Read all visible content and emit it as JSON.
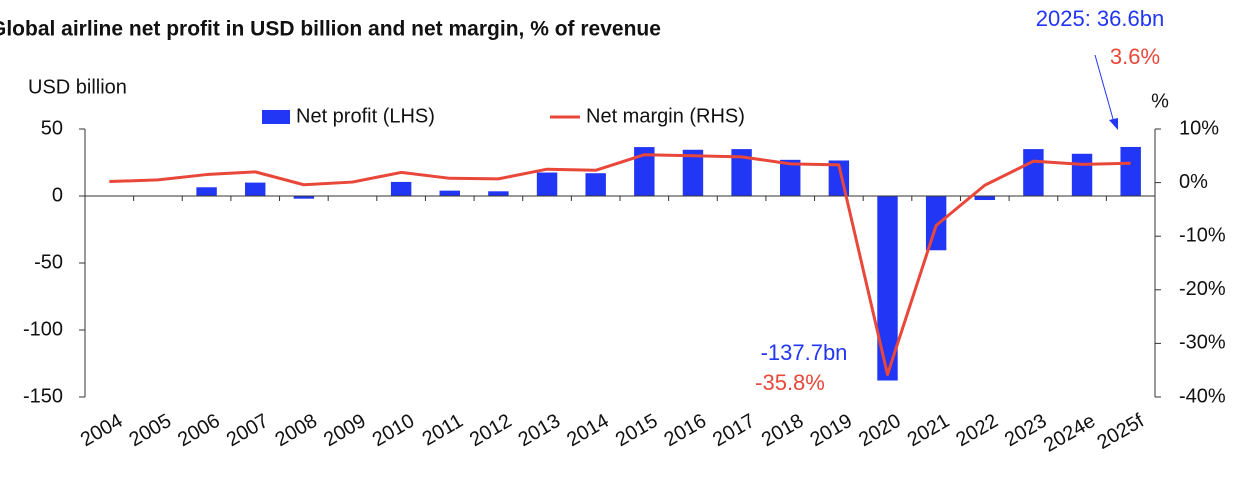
{
  "chart_data": {
    "type": "bar_line",
    "title": "Global airline net profit in USD billion and net margin, % of revenue",
    "y_label": "USD billion",
    "y2_label": "%",
    "categories": [
      "2004",
      "2005",
      "2006",
      "2007",
      "2008",
      "2009",
      "2010",
      "2011",
      "2012",
      "2013",
      "2014",
      "2015",
      "2016",
      "2017",
      "2018",
      "2019",
      "2020",
      "2021",
      "2022",
      "2023",
      "2024e",
      "2025f"
    ],
    "series": [
      {
        "name": "Net profit (LHS)",
        "color": "#2236f5",
        "kind": "bar",
        "values": [
          0,
          0,
          6.5,
          10,
          -2,
          0,
          10.5,
          4,
          3.5,
          17.5,
          17,
          36.5,
          34.5,
          35,
          27,
          26.5,
          -137.7,
          -40.5,
          -3,
          35,
          31.5,
          36.6
        ]
      },
      {
        "name": "Net margin (RHS)",
        "color": "#e8473a",
        "kind": "line",
        "axis": "y2",
        "values": [
          0.2,
          0.5,
          1.5,
          2.0,
          -0.4,
          0.1,
          1.9,
          0.8,
          0.7,
          2.5,
          2.3,
          5.2,
          5.0,
          4.8,
          3.5,
          3.3,
          -35.8,
          -8,
          -0.5,
          4.0,
          3.4,
          3.6
        ]
      }
    ],
    "ylim": [
      -150,
      50
    ],
    "yticks": [
      -150,
      -100,
      -50,
      0,
      50
    ],
    "y2lim": [
      -40,
      10
    ],
    "y2ticks": [
      {
        "value": -40,
        "label": "-40%"
      },
      {
        "value": -30,
        "label": "-30%"
      },
      {
        "value": -20,
        "label": "-20%"
      },
      {
        "value": -10,
        "label": "-10%"
      },
      {
        "value": 0,
        "label": "0%"
      },
      {
        "value": 10,
        "label": "10%"
      }
    ],
    "annotations": [
      "2025: 36.6bn",
      "3.6%",
      "-137.7bn",
      "-35.8%"
    ]
  }
}
